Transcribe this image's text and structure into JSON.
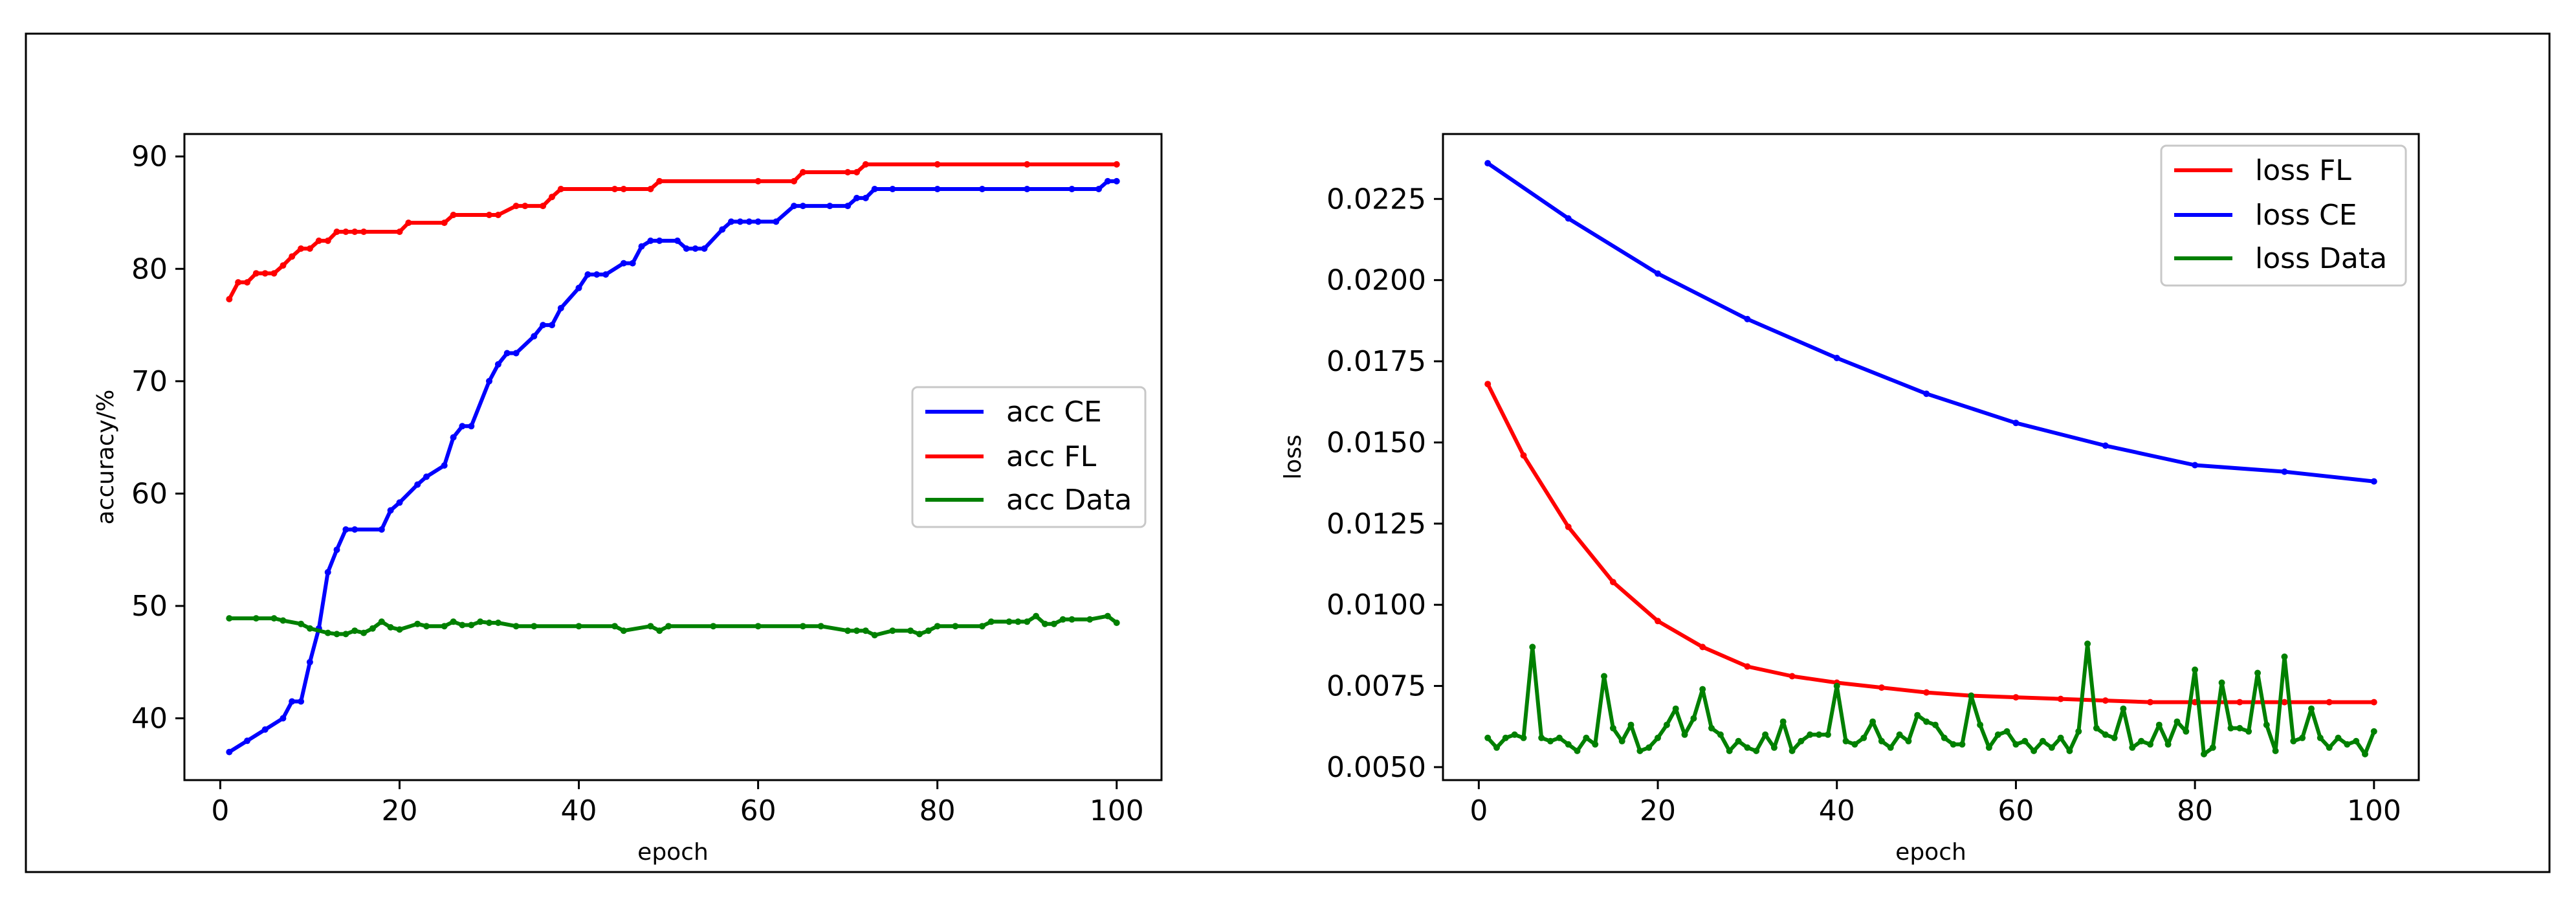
{
  "chart_data": [
    {
      "type": "line",
      "title": "",
      "xlabel": "epoch",
      "ylabel": "accuracy/%",
      "xlim": [
        -4,
        105
      ],
      "ylim": [
        34.5,
        92
      ],
      "xticks": [
        0,
        20,
        40,
        60,
        80,
        100
      ],
      "xtick_labels": [
        "0",
        "20",
        "40",
        "60",
        "80",
        "100"
      ],
      "yticks": [
        40,
        50,
        60,
        70,
        80,
        90
      ],
      "ytick_labels": [
        "40",
        "50",
        "60",
        "70",
        "80",
        "90"
      ],
      "legend_position": "center-right",
      "grid": false,
      "series": [
        {
          "name": "acc CE",
          "color": "#0000ff",
          "marker": "dot",
          "x": [
            1,
            3,
            5,
            7,
            8,
            9,
            10,
            11,
            12,
            13,
            14,
            15,
            18,
            19,
            20,
            22,
            23,
            25,
            26,
            27,
            28,
            30,
            31,
            32,
            33,
            35,
            36,
            37,
            38,
            40,
            41,
            42,
            43,
            45,
            46,
            47,
            48,
            49,
            51,
            52,
            53,
            54,
            56,
            57,
            58,
            59,
            60,
            62,
            64,
            65,
            68,
            70,
            71,
            72,
            73,
            75,
            80,
            85,
            90,
            95,
            98,
            99,
            100
          ],
          "values": [
            37,
            38,
            39,
            40,
            41.5,
            41.5,
            45,
            48,
            53,
            55,
            56.8,
            56.8,
            56.8,
            58.5,
            59.2,
            60.8,
            61.5,
            62.5,
            65,
            66,
            66,
            70,
            71.5,
            72.5,
            72.5,
            74,
            75,
            75,
            76.5,
            78.3,
            79.5,
            79.5,
            79.5,
            80.5,
            80.5,
            82,
            82.5,
            82.5,
            82.5,
            81.8,
            81.8,
            81.8,
            83.5,
            84.2,
            84.2,
            84.2,
            84.2,
            84.2,
            85.6,
            85.6,
            85.6,
            85.6,
            86.3,
            86.3,
            87.1,
            87.1,
            87.1,
            87.1,
            87.1,
            87.1,
            87.1,
            87.8,
            87.8
          ]
        },
        {
          "name": "acc FL",
          "color": "#ff0000",
          "marker": "dot",
          "x": [
            1,
            2,
            3,
            4,
            5,
            6,
            7,
            8,
            9,
            10,
            11,
            12,
            13,
            14,
            15,
            16,
            20,
            21,
            25,
            26,
            30,
            31,
            33,
            34,
            36,
            37,
            38,
            44,
            45,
            48,
            49,
            60,
            64,
            65,
            70,
            71,
            72,
            80,
            90,
            100
          ],
          "values": [
            77.3,
            78.8,
            78.8,
            79.6,
            79.6,
            79.6,
            80.3,
            81.1,
            81.8,
            81.8,
            82.5,
            82.5,
            83.3,
            83.3,
            83.3,
            83.3,
            83.3,
            84.1,
            84.1,
            84.8,
            84.8,
            84.8,
            85.6,
            85.6,
            85.6,
            86.4,
            87.1,
            87.1,
            87.1,
            87.1,
            87.8,
            87.8,
            87.8,
            88.6,
            88.6,
            88.6,
            89.3,
            89.3,
            89.3,
            89.3
          ]
        },
        {
          "name": "acc Data",
          "color": "#008000",
          "marker": "dot",
          "x": [
            1,
            4,
            6,
            7,
            9,
            10,
            12,
            13,
            14,
            15,
            16,
            17,
            18,
            19,
            20,
            22,
            23,
            25,
            26,
            27,
            28,
            29,
            30,
            31,
            33,
            35,
            40,
            44,
            45,
            48,
            49,
            50,
            55,
            60,
            65,
            67,
            70,
            71,
            72,
            73,
            75,
            77,
            78,
            79,
            80,
            82,
            85,
            86,
            88,
            89,
            90,
            91,
            92,
            93,
            94,
            95,
            97,
            99,
            100
          ],
          "values": [
            48.9,
            48.9,
            48.9,
            48.7,
            48.4,
            48,
            47.6,
            47.5,
            47.5,
            47.8,
            47.6,
            48,
            48.6,
            48.1,
            47.9,
            48.4,
            48.2,
            48.2,
            48.6,
            48.3,
            48.3,
            48.6,
            48.5,
            48.5,
            48.2,
            48.2,
            48.2,
            48.2,
            47.8,
            48.2,
            47.8,
            48.2,
            48.2,
            48.2,
            48.2,
            48.2,
            47.8,
            47.8,
            47.8,
            47.4,
            47.8,
            47.8,
            47.5,
            47.8,
            48.2,
            48.2,
            48.2,
            48.6,
            48.6,
            48.6,
            48.6,
            49.1,
            48.4,
            48.4,
            48.8,
            48.8,
            48.8,
            49.1,
            48.5
          ]
        }
      ]
    },
    {
      "type": "line",
      "title": "",
      "xlabel": "epoch",
      "ylabel": "loss",
      "xlim": [
        -4,
        105
      ],
      "ylim": [
        0.0046,
        0.0245
      ],
      "xticks": [
        0,
        20,
        40,
        60,
        80,
        100
      ],
      "xtick_labels": [
        "0",
        "20",
        "40",
        "60",
        "80",
        "100"
      ],
      "yticks": [
        0.005,
        0.0075,
        0.01,
        0.0125,
        0.015,
        0.0175,
        0.02,
        0.0225
      ],
      "ytick_labels": [
        "0.0050",
        "0.0075",
        "0.0100",
        "0.0125",
        "0.0150",
        "0.0175",
        "0.0200",
        "0.0225"
      ],
      "legend_position": "upper-right",
      "grid": false,
      "series": [
        {
          "name": "loss FL",
          "color": "#ff0000",
          "marker": "dot",
          "x": [
            1,
            5,
            10,
            15,
            20,
            25,
            30,
            35,
            40,
            45,
            50,
            55,
            60,
            65,
            70,
            75,
            80,
            85,
            90,
            95,
            100
          ],
          "values": [
            0.0168,
            0.0146,
            0.0124,
            0.0107,
            0.0095,
            0.0087,
            0.0081,
            0.0078,
            0.0076,
            0.00745,
            0.0073,
            0.0072,
            0.00715,
            0.0071,
            0.00705,
            0.007,
            0.007,
            0.007,
            0.007,
            0.007,
            0.007
          ]
        },
        {
          "name": "loss CE",
          "color": "#0000ff",
          "marker": "dot",
          "x": [
            1,
            10,
            20,
            30,
            40,
            50,
            60,
            70,
            80,
            90,
            100
          ],
          "values": [
            0.0236,
            0.0219,
            0.0202,
            0.0188,
            0.0176,
            0.0165,
            0.0156,
            0.0149,
            0.0143,
            0.0141,
            0.0138
          ]
        },
        {
          "name": "loss Data",
          "color": "#008000",
          "marker": "dot",
          "x": [
            1,
            2,
            3,
            4,
            5,
            6,
            7,
            8,
            9,
            10,
            11,
            12,
            13,
            14,
            15,
            16,
            17,
            18,
            19,
            20,
            21,
            22,
            23,
            24,
            25,
            26,
            27,
            28,
            29,
            30,
            31,
            32,
            33,
            34,
            35,
            36,
            37,
            38,
            39,
            40,
            41,
            42,
            43,
            44,
            45,
            46,
            47,
            48,
            49,
            50,
            51,
            52,
            53,
            54,
            55,
            56,
            57,
            58,
            59,
            60,
            61,
            62,
            63,
            64,
            65,
            66,
            67,
            68,
            69,
            70,
            71,
            72,
            73,
            74,
            75,
            76,
            77,
            78,
            79,
            80,
            81,
            82,
            83,
            84,
            85,
            86,
            87,
            88,
            89,
            90,
            91,
            92,
            93,
            94,
            95,
            96,
            97,
            98,
            99,
            100
          ],
          "values": [
            0.0059,
            0.0056,
            0.0059,
            0.006,
            0.0059,
            0.0087,
            0.0059,
            0.0058,
            0.0059,
            0.0057,
            0.0055,
            0.0059,
            0.0057,
            0.0078,
            0.0062,
            0.0058,
            0.0063,
            0.0055,
            0.0056,
            0.0059,
            0.0063,
            0.0068,
            0.006,
            0.0065,
            0.0074,
            0.0062,
            0.006,
            0.0055,
            0.0058,
            0.0056,
            0.0055,
            0.006,
            0.0056,
            0.0064,
            0.0055,
            0.0058,
            0.006,
            0.006,
            0.006,
            0.0075,
            0.0058,
            0.0057,
            0.0059,
            0.0064,
            0.0058,
            0.0056,
            0.006,
            0.0058,
            0.0066,
            0.0064,
            0.0063,
            0.0059,
            0.0057,
            0.0057,
            0.0072,
            0.0063,
            0.0056,
            0.006,
            0.0061,
            0.0057,
            0.0058,
            0.0055,
            0.0058,
            0.0056,
            0.0059,
            0.0055,
            0.0061,
            0.0088,
            0.0062,
            0.006,
            0.0059,
            0.0068,
            0.0056,
            0.0058,
            0.0057,
            0.0063,
            0.0057,
            0.0064,
            0.0061,
            0.008,
            0.0054,
            0.0056,
            0.0076,
            0.0062,
            0.0062,
            0.0061,
            0.0079,
            0.0063,
            0.0055,
            0.0084,
            0.0058,
            0.0059,
            0.0068,
            0.0059,
            0.0056,
            0.0059,
            0.0057,
            0.0058,
            0.0054,
            0.0061
          ]
        }
      ]
    }
  ]
}
